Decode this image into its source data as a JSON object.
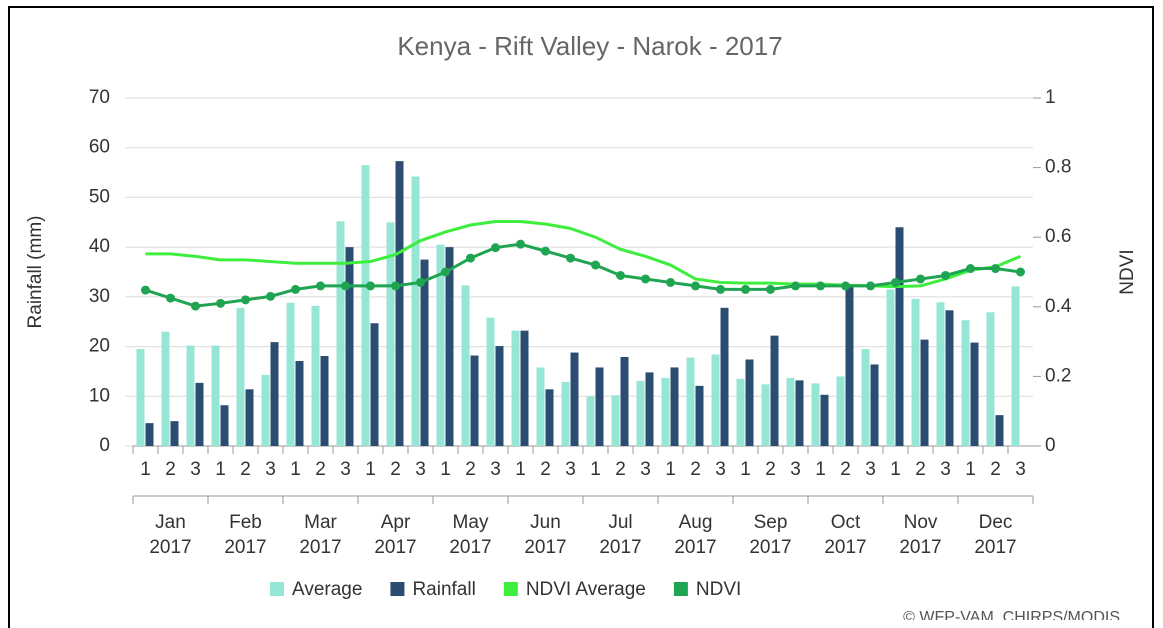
{
  "chart_data": {
    "type": "bar-line",
    "title": "Kenya - Rift Valley - Narok - 2017",
    "y_label": "Rainfall (mm)",
    "y2_label": "NDVI",
    "source": "© WFP-VAM, CHIRPS/MODIS",
    "categories": [
      "1",
      "2",
      "3",
      "1",
      "2",
      "3",
      "1",
      "2",
      "3",
      "1",
      "2",
      "3",
      "1",
      "2",
      "3",
      "1",
      "2",
      "3",
      "1",
      "2",
      "3",
      "1",
      "2",
      "3",
      "1",
      "2",
      "3",
      "1",
      "2",
      "3",
      "1",
      "2",
      "3",
      "1",
      "2",
      "3"
    ],
    "months": [
      {
        "month": "Jan",
        "year": "2017"
      },
      {
        "month": "Feb",
        "year": "2017"
      },
      {
        "month": "Mar",
        "year": "2017"
      },
      {
        "month": "Apr",
        "year": "2017"
      },
      {
        "month": "May",
        "year": "2017"
      },
      {
        "month": "Jun",
        "year": "2017"
      },
      {
        "month": "Jul",
        "year": "2017"
      },
      {
        "month": "Aug",
        "year": "2017"
      },
      {
        "month": "Sep",
        "year": "2017"
      },
      {
        "month": "Oct",
        "year": "2017"
      },
      {
        "month": "Nov",
        "year": "2017"
      },
      {
        "month": "Dec",
        "year": "2017"
      }
    ],
    "ylim": [
      0,
      70
    ],
    "yticks": [
      0,
      10,
      20,
      30,
      40,
      50,
      60,
      70
    ],
    "y2lim": [
      0,
      1
    ],
    "y2ticks": [
      0,
      0.2,
      0.4,
      0.6,
      0.8,
      1
    ],
    "grid": true,
    "series": [
      {
        "name": "Average",
        "kind": "bar",
        "color": "#96e6d6",
        "values": [
          19.5,
          23,
          20.2,
          20.2,
          27.8,
          14.3,
          28.8,
          28.2,
          45.2,
          56.5,
          45,
          54.2,
          40.5,
          32.3,
          25.8,
          23.2,
          15.8,
          12.9,
          10,
          10.2,
          13.1,
          13.7,
          17.8,
          18.4,
          13.5,
          12.4,
          13.7,
          12.6,
          14,
          19.5,
          31.5,
          29.6,
          28.9,
          25.3,
          26.9,
          32.1
        ]
      },
      {
        "name": "Rainfall",
        "kind": "bar",
        "color": "#2b4d72",
        "values": [
          4.6,
          5,
          12.7,
          8.2,
          11.4,
          20.9,
          17.1,
          18.1,
          40,
          24.7,
          57.3,
          37.5,
          40,
          18.2,
          20.1,
          23.2,
          11.4,
          18.8,
          15.8,
          17.9,
          14.8,
          15.8,
          12.1,
          27.8,
          17.4,
          22.2,
          13.2,
          10.3,
          32.5,
          16.4,
          44,
          21.4,
          27.3,
          20.8,
          6.2,
          null
        ]
      },
      {
        "name": "NDVI Average",
        "kind": "line",
        "axis": "y2",
        "color": "#3dee3d",
        "values": [
          0.552,
          0.552,
          0.545,
          0.535,
          0.535,
          0.53,
          0.525,
          0.525,
          0.525,
          0.53,
          0.55,
          0.59,
          0.615,
          0.635,
          0.645,
          0.645,
          0.638,
          0.625,
          0.6,
          0.565,
          0.545,
          0.52,
          0.48,
          0.47,
          0.468,
          0.468,
          0.465,
          0.465,
          0.462,
          0.46,
          0.458,
          0.46,
          0.48,
          0.505,
          0.515,
          0.545
        ]
      },
      {
        "name": "NDVI",
        "kind": "line",
        "axis": "y2",
        "markers": true,
        "color": "#1fa552",
        "values": [
          0.448,
          0.425,
          0.402,
          0.41,
          0.42,
          0.43,
          0.45,
          0.46,
          0.46,
          0.46,
          0.46,
          0.47,
          0.5,
          0.54,
          0.57,
          0.58,
          0.56,
          0.54,
          0.52,
          0.49,
          0.48,
          0.47,
          0.46,
          0.45,
          0.45,
          0.45,
          0.46,
          0.46,
          0.46,
          0.46,
          0.47,
          0.48,
          0.49,
          0.51,
          0.51,
          0.5
        ]
      }
    ]
  }
}
